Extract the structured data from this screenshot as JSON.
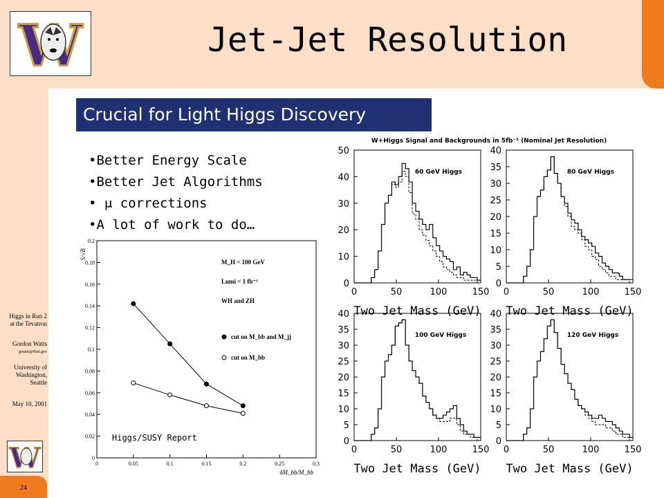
{
  "slide": {
    "title": "Jet-Jet Resolution",
    "subtitle": "Crucial for Light Higgs Discovery",
    "bullets": [
      "•Better Energy Scale",
      "•Better Jet Algorithms",
      "•  μ corrections",
      "•A lot of work to do…"
    ],
    "sidebar": {
      "line1": "Higgs in Run 2",
      "line2": "at the Tevatron",
      "author": "Gordon Watts",
      "email": "gwatts@fnal.gov",
      "affil1": "University of",
      "affil2": "Washington,",
      "affil3": "Seattle",
      "date": "May 10, 2001"
    },
    "page_number": "24",
    "logo_text": "W",
    "colors": {
      "background": "#fddfc8",
      "accent": "#f07a1e",
      "banner": "#1f3170",
      "logo_purple": "#4b2a84",
      "logo_gold": "#c8a24a"
    }
  },
  "chart_data": [
    {
      "type": "line",
      "title": "",
      "xlabel": "δM_bb/M_bb",
      "ylabel": "S/√B",
      "xlim": [
        0,
        0.3
      ],
      "ylim": [
        0,
        0.2
      ],
      "x_ticks": [
        "0",
        "0.05",
        "0.1",
        "0.15",
        "0.2",
        "0.25",
        "0.3"
      ],
      "y_ticks": [
        "0",
        "0.02",
        "0.04",
        "0.06",
        "0.08",
        "0.1",
        "0.12",
        "0.14",
        "0.16",
        "0.18",
        "0.2"
      ],
      "annotations": [
        "M_H = 100 GeV",
        "Lumi = 1 fb⁻¹",
        "WH and ZH"
      ],
      "footnote": "Higgs/SUSY Report",
      "series": [
        {
          "name": "cut on M_bb and M_jj",
          "marker": "filled",
          "x": [
            0.05,
            0.1,
            0.15,
            0.2
          ],
          "values": [
            0.142,
            0.105,
            0.068,
            0.048
          ]
        },
        {
          "name": "cut on M_bb",
          "marker": "open",
          "x": [
            0.05,
            0.1,
            0.15,
            0.2
          ],
          "values": [
            0.069,
            0.058,
            0.048,
            0.041
          ]
        }
      ]
    },
    {
      "type": "histogram",
      "figure_title": "W+Higgs Signal and Backgrounds in 5fb⁻¹ (Nominal Jet Resolution)",
      "xlabel": "Two Jet Mass (GeV)",
      "xlim": [
        0,
        150
      ],
      "panels": [
        {
          "label": "60 GeV Higgs",
          "ylim": [
            0,
            50
          ],
          "y_ticks": [
            "0",
            "10",
            "20",
            "30",
            "40",
            "50"
          ],
          "x_ticks": [
            "0",
            "50",
            "100",
            "150"
          ],
          "solid": [
            0,
            0,
            0,
            0,
            0,
            2,
            5,
            12,
            22,
            30,
            33,
            38,
            37,
            40,
            45,
            43,
            38,
            30,
            27,
            24,
            22,
            20,
            22,
            17,
            14,
            12,
            10,
            9,
            8,
            5,
            6,
            3,
            4,
            3,
            2,
            2,
            1
          ],
          "dashed": [
            0,
            0,
            0,
            0,
            0,
            2,
            5,
            12,
            22,
            30,
            33,
            37,
            36,
            38,
            42,
            40,
            34,
            26,
            24,
            20,
            18,
            16,
            14,
            12,
            10,
            8,
            6,
            5,
            4,
            3,
            2,
            2,
            1,
            1,
            1,
            1,
            0
          ]
        },
        {
          "label": "80 GeV Higgs",
          "ylim": [
            0,
            40
          ],
          "y_ticks": [
            "0",
            "5",
            "10",
            "15",
            "20",
            "25",
            "30",
            "35",
            "40"
          ],
          "x_ticks": [
            "0",
            "50",
            "100",
            "150"
          ],
          "solid": [
            0,
            0,
            0,
            0,
            0,
            2,
            5,
            10,
            20,
            26,
            28,
            32,
            34,
            38,
            33,
            30,
            26,
            24,
            21,
            19,
            18,
            16,
            14,
            13,
            12,
            11,
            9,
            8,
            6,
            5,
            4,
            3,
            3,
            2,
            1,
            1,
            1
          ],
          "dashed": [
            0,
            0,
            0,
            0,
            0,
            2,
            5,
            10,
            20,
            26,
            28,
            32,
            34,
            38,
            33,
            30,
            26,
            23,
            20,
            17,
            16,
            15,
            13,
            11,
            10,
            8,
            7,
            5,
            4,
            3,
            2,
            2,
            1,
            1,
            1,
            1,
            0
          ]
        },
        {
          "label": "100 GeV Higgs",
          "ylim": [
            0,
            40
          ],
          "y_ticks": [
            "0",
            "5",
            "10",
            "15",
            "20",
            "25",
            "30",
            "35",
            "40"
          ],
          "x_ticks": [
            "0",
            "50",
            "100",
            "150"
          ],
          "solid": [
            0,
            0,
            0,
            0,
            0,
            2,
            4,
            10,
            20,
            25,
            27,
            30,
            36,
            37,
            38,
            30,
            25,
            22,
            20,
            18,
            14,
            12,
            10,
            8,
            7,
            7,
            8,
            9,
            10,
            11,
            7,
            5,
            3,
            2,
            2,
            1,
            1
          ],
          "dashed": [
            0,
            0,
            0,
            0,
            0,
            2,
            4,
            10,
            20,
            25,
            27,
            30,
            36,
            37,
            38,
            30,
            25,
            22,
            20,
            18,
            14,
            12,
            10,
            8,
            7,
            6,
            6,
            6,
            7,
            7,
            5,
            3,
            2,
            2,
            1,
            1,
            0
          ]
        },
        {
          "label": "120 GeV Higgs",
          "ylim": [
            0,
            40
          ],
          "y_ticks": [
            "0",
            "5",
            "10",
            "15",
            "20",
            "25",
            "30",
            "35",
            "40"
          ],
          "x_ticks": [
            "0",
            "50",
            "100",
            "150"
          ],
          "solid": [
            0,
            0,
            0,
            0,
            0,
            2,
            4,
            10,
            20,
            25,
            28,
            32,
            36,
            38,
            34,
            29,
            24,
            21,
            18,
            16,
            13,
            11,
            10,
            9,
            8,
            7,
            7,
            8,
            7,
            6,
            6,
            5,
            4,
            3,
            2,
            2,
            1
          ],
          "dashed": [
            0,
            0,
            0,
            0,
            0,
            2,
            4,
            10,
            20,
            25,
            28,
            32,
            36,
            38,
            34,
            29,
            24,
            21,
            18,
            16,
            13,
            11,
            10,
            8,
            7,
            6,
            5,
            5,
            5,
            4,
            4,
            3,
            2,
            2,
            1,
            1,
            0
          ]
        }
      ]
    }
  ]
}
